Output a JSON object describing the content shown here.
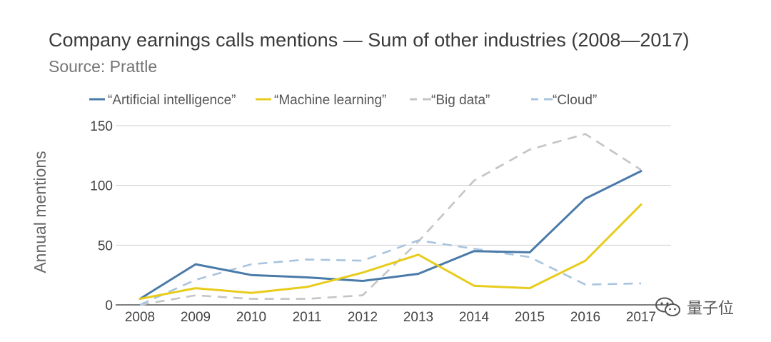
{
  "chart_data": {
    "type": "line",
    "title": "Company earnings calls mentions — Sum of other industries (2008—2017)",
    "subtitle": "Source: Prattle",
    "ylabel": "Annual mentions",
    "xlabel": "",
    "x": [
      "2008",
      "2009",
      "2010",
      "2011",
      "2012",
      "2013",
      "2014",
      "2015",
      "2016",
      "2017"
    ],
    "ylim": [
      0,
      150
    ],
    "yticks": [
      0,
      50,
      100,
      150
    ],
    "grid": true,
    "legend_position": "top",
    "series": [
      {
        "name": "“Artificial intelligence”",
        "color": "#4a7aa8",
        "dash": "solid",
        "values": [
          5,
          34,
          25,
          23,
          20,
          26,
          45,
          44,
          89,
          112
        ]
      },
      {
        "name": "“Machine learning”",
        "color": "#e8cc1c",
        "dash": "solid",
        "values": [
          5,
          14,
          10,
          15,
          27,
          42,
          16,
          14,
          37,
          84
        ]
      },
      {
        "name": "“Big data”",
        "color": "#c4c4c4",
        "dash": "dashed",
        "values": [
          0,
          8,
          5,
          5,
          8,
          53,
          104,
          130,
          143,
          113
        ]
      },
      {
        "name": "“Cloud”",
        "color": "#a9c4de",
        "dash": "dashed",
        "values": [
          0,
          21,
          34,
          38,
          37,
          54,
          47,
          40,
          17,
          18
        ]
      }
    ]
  },
  "watermark": {
    "text": "量子位",
    "icon": "wechat-icon"
  }
}
